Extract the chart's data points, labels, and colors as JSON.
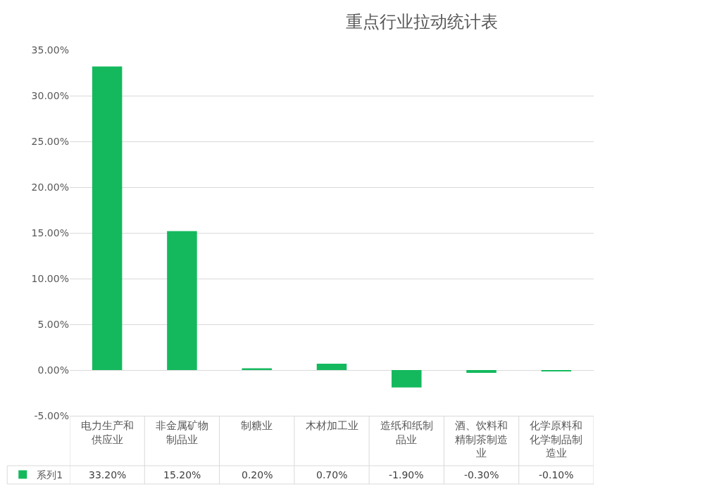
{
  "chart_data": {
    "type": "bar",
    "title": "重点行业拉动统计表",
    "categories": [
      "电力生产和供应业",
      "非金属矿物制品业",
      "制糖业",
      "木材加工业",
      "造纸和纸制品业",
      "酒、饮料和精制茶制造业",
      "化学原料和化学制品制造业"
    ],
    "series": [
      {
        "name": "系列1",
        "color": "#14b95d",
        "values": [
          33.2,
          15.2,
          0.2,
          0.7,
          -1.9,
          -0.3,
          -0.1
        ],
        "value_labels": [
          "33.20%",
          "15.20%",
          "0.20%",
          "0.70%",
          "-1.90%",
          "-0.30%",
          "-0.10%"
        ]
      }
    ],
    "ylim": [
      -5,
      35
    ],
    "yticks": [
      {
        "value": -5,
        "label": "-5.00%"
      },
      {
        "value": 0,
        "label": "0.00%"
      },
      {
        "value": 5,
        "label": "5.00%"
      },
      {
        "value": 10,
        "label": "10.00%"
      },
      {
        "value": 15,
        "label": "15.00%"
      },
      {
        "value": 20,
        "label": "20.00%"
      },
      {
        "value": 25,
        "label": "25.00%"
      },
      {
        "value": 30,
        "label": "30.00%"
      },
      {
        "value": 35,
        "label": "35.00%"
      }
    ],
    "grid": "y",
    "legend": "bottom left"
  }
}
